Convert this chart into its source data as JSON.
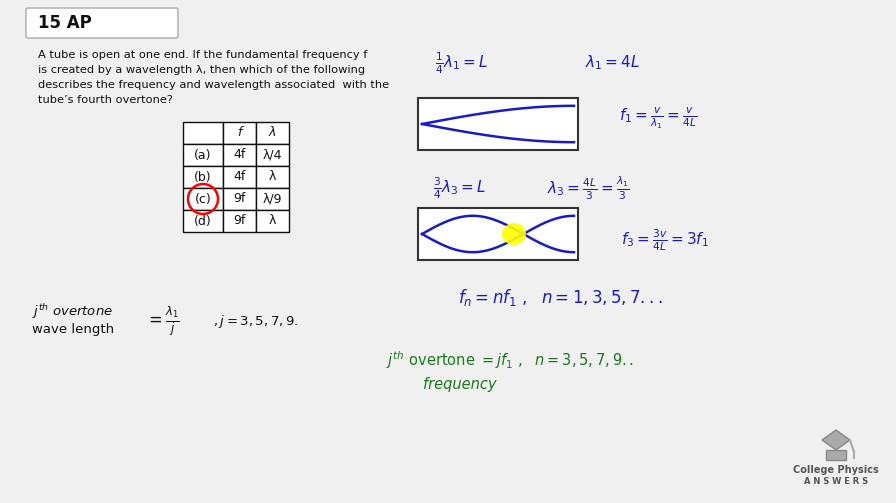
{
  "bg_color": "#f0f0f0",
  "title_box_text": "15 AP",
  "problem_text_line1": "A tube is open at one end. If the fundamental frequency f",
  "problem_text_line2": "is created by a wavelength λ, then which of the following",
  "problem_text_line3": "describes the frequency and wavelength associated  with the",
  "problem_text_line4": "tube’s fourth overtone?",
  "table_headers": [
    "",
    "f",
    "λ"
  ],
  "table_rows": [
    [
      "(a)",
      "4f",
      "λ/4"
    ],
    [
      "(b)",
      "4f",
      "λ"
    ],
    [
      "(c)",
      "9f",
      "λ/9"
    ],
    [
      "(d)",
      "9f",
      "λ"
    ]
  ],
  "circle_row": 2,
  "handwriting_color_blue": "#1a1acc",
  "handwriting_color_dark": "#111111",
  "handwriting_color_green": "#1a7a1a",
  "logo_color": "#888888",
  "wave_color": "#1a1acc",
  "highlight_color": "#ffff00"
}
